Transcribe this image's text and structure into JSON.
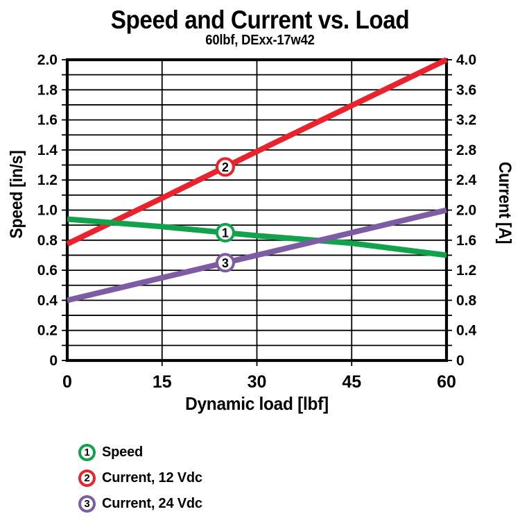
{
  "figure": {
    "background": "#ffffff",
    "text_color": "#000000",
    "frame_color": "#000000"
  },
  "chart_data": {
    "type": "line",
    "title": "Speed and Current vs. Load",
    "subtitle": "60lbf, DExx-17w42",
    "xlabel": "Dynamic load [lbf]",
    "ylabel_left": "Speed [in/s]",
    "ylabel_right": "Current [A]",
    "xlim": [
      0,
      60
    ],
    "ylim_left": [
      0,
      2.0
    ],
    "ylim_right": [
      0,
      4.0
    ],
    "xticks": [
      {
        "label": "0",
        "value": 0
      },
      {
        "label": "15",
        "value": 15
      },
      {
        "label": "30",
        "value": 30
      },
      {
        "label": "45",
        "value": 45
      },
      {
        "label": "60",
        "value": 60
      }
    ],
    "yticks_left": [
      {
        "label": "0",
        "value": 0
      },
      {
        "label": "0.2",
        "value": 0.2
      },
      {
        "label": "0.4",
        "value": 0.4
      },
      {
        "label": "0.6",
        "value": 0.6
      },
      {
        "label": "0.8",
        "value": 0.8
      },
      {
        "label": "1.0",
        "value": 1.0
      },
      {
        "label": "1.2",
        "value": 1.2
      },
      {
        "label": "1.4",
        "value": 1.4
      },
      {
        "label": "1.6",
        "value": 1.6
      },
      {
        "label": "1.8",
        "value": 1.8
      },
      {
        "label": "2.0",
        "value": 2.0
      }
    ],
    "yticks_right": [
      {
        "label": "0",
        "value": 0
      },
      {
        "label": "0.4",
        "value": 0.4
      },
      {
        "label": "0.8",
        "value": 0.8
      },
      {
        "label": "1.2",
        "value": 1.2
      },
      {
        "label": "1.6",
        "value": 1.6
      },
      {
        "label": "2.0",
        "value": 2.0
      },
      {
        "label": "2.4",
        "value": 2.4
      },
      {
        "label": "2.8",
        "value": 2.8
      },
      {
        "label": "3.2",
        "value": 3.2
      },
      {
        "label": "3.6",
        "value": 3.6
      },
      {
        "label": "4.0",
        "value": 4.0
      }
    ],
    "grid": {
      "show": true,
      "color": "#000000",
      "y_minor_step_left": 0.1,
      "x_gridlines": [
        15,
        30,
        45
      ]
    },
    "series": [
      {
        "name": "Speed",
        "legend_num": "1",
        "axis": "left",
        "unit": "in/s",
        "color": "#12A24B",
        "z": 2,
        "x": [
          0,
          15,
          30,
          45,
          60
        ],
        "y": [
          0.94,
          0.89,
          0.83,
          0.78,
          0.7
        ],
        "marker_x": 25
      },
      {
        "name": "Current, 12 Vdc",
        "legend_num": "2",
        "axis": "right",
        "unit": "A",
        "color": "#E9222C",
        "z": 1,
        "x": [
          0,
          15,
          30,
          45,
          60
        ],
        "y": [
          1.55,
          2.16,
          2.78,
          3.39,
          4.0
        ],
        "marker_x": 25
      },
      {
        "name": "Current, 24 Vdc",
        "legend_num": "3",
        "axis": "right",
        "unit": "A",
        "color": "#7D5CA4",
        "z": 3,
        "x": [
          0,
          15,
          30,
          45,
          60
        ],
        "y": [
          0.8,
          1.1,
          1.4,
          1.7,
          2.0
        ],
        "marker_x": 25
      }
    ]
  },
  "legend": {
    "items": [
      {
        "num": "1",
        "label": "Speed",
        "color": "#12A24B"
      },
      {
        "num": "2",
        "label": "Current, 12 Vdc",
        "color": "#E9222C"
      },
      {
        "num": "3",
        "label": "Current, 24 Vdc",
        "color": "#7D5CA4"
      }
    ]
  }
}
